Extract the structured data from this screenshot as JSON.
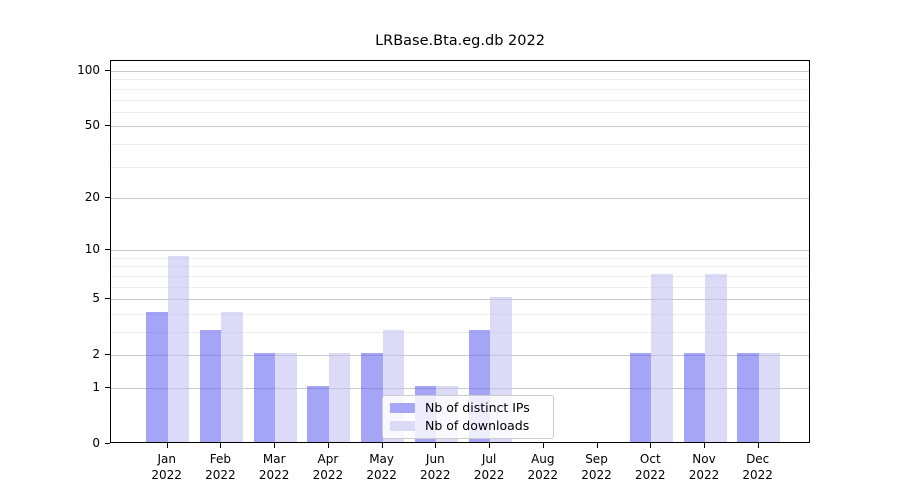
{
  "title": "LRBase.Bta.eg.db 2022",
  "colors": {
    "distinct_ips_bar": "rgba(95,95,242,0.56)",
    "distinct_ips_swatch": "#a6a6f7",
    "downloads_bar": "rgba(190,190,242,0.56)",
    "downloads_swatch": "#dbdbf8",
    "grid_major": "#c9c9c9",
    "grid_minor": "#ededed",
    "axis": "#000000",
    "legend_border": "#cccccc"
  },
  "chart_data": {
    "type": "bar",
    "scale": "log10(1+y)",
    "title": "LRBase.Bta.eg.db 2022",
    "xlabel": "",
    "ylabel": "",
    "categories": [
      "Jan",
      "Feb",
      "Mar",
      "Apr",
      "May",
      "Jun",
      "Jul",
      "Aug",
      "Sep",
      "Oct",
      "Nov",
      "Dec"
    ],
    "category_year": "2022",
    "series": [
      {
        "name": "Nb of distinct IPs",
        "values": [
          4,
          3,
          2,
          1,
          2,
          1,
          3,
          0,
          0,
          2,
          2,
          2
        ]
      },
      {
        "name": "Nb of downloads",
        "values": [
          9,
          4,
          2,
          2,
          3,
          1,
          5,
          0,
          0,
          7,
          7,
          2
        ]
      }
    ],
    "y_ticks": [
      0,
      1,
      2,
      5,
      10,
      20,
      50,
      100
    ],
    "y_minor_ticks": [
      3,
      4,
      6,
      7,
      8,
      9,
      30,
      40,
      60,
      70,
      80,
      90
    ],
    "ylim": [
      0,
      113
    ],
    "grid": "on",
    "legend_position": "lower center"
  },
  "legend": {
    "items": [
      {
        "label": "Nb of distinct IPs"
      },
      {
        "label": "Nb of downloads"
      }
    ]
  }
}
